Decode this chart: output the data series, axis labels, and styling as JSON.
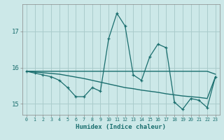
{
  "xlabel": "Humidex (Indice chaleur)",
  "background_color": "#cce8e8",
  "grid_color": "#aacccc",
  "line_color": "#1a6e6e",
  "x_values": [
    0,
    1,
    2,
    3,
    4,
    5,
    6,
    7,
    8,
    9,
    10,
    11,
    12,
    13,
    14,
    15,
    16,
    17,
    18,
    19,
    20,
    21,
    22,
    23
  ],
  "series_jagged": [
    15.9,
    15.85,
    15.8,
    15.75,
    15.65,
    15.45,
    15.2,
    15.2,
    15.45,
    15.35,
    16.8,
    17.5,
    17.15,
    15.8,
    15.65,
    16.3,
    16.65,
    16.55,
    15.05,
    14.85,
    15.15,
    15.1,
    14.9,
    15.75
  ],
  "series_flat": [
    15.9,
    15.9,
    15.9,
    15.9,
    15.9,
    15.9,
    15.9,
    15.9,
    15.9,
    15.9,
    15.9,
    15.9,
    15.9,
    15.9,
    15.9,
    15.9,
    15.9,
    15.9,
    15.9,
    15.9,
    15.9,
    15.9,
    15.9,
    15.82
  ],
  "series_diag": [
    15.9,
    15.88,
    15.86,
    15.84,
    15.82,
    15.78,
    15.74,
    15.7,
    15.65,
    15.6,
    15.55,
    15.5,
    15.45,
    15.42,
    15.38,
    15.35,
    15.32,
    15.28,
    15.25,
    15.22,
    15.2,
    15.18,
    15.15,
    15.75
  ],
  "ylim": [
    14.7,
    17.75
  ],
  "yticks": [
    15,
    16,
    17
  ],
  "xticks": [
    0,
    1,
    2,
    3,
    4,
    5,
    6,
    7,
    8,
    9,
    10,
    11,
    12,
    13,
    14,
    15,
    16,
    17,
    18,
    19,
    20,
    21,
    22,
    23
  ]
}
